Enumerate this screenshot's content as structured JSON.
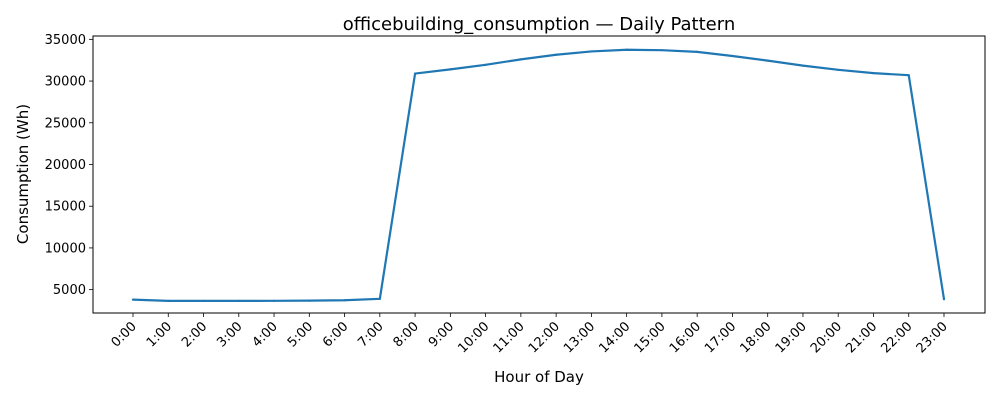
{
  "chart_data": {
    "type": "line",
    "title": "officebuilding_consumption — Daily Pattern",
    "xlabel": "Hour of Day",
    "ylabel": "Consumption (Wh)",
    "categories": [
      "0:00",
      "1:00",
      "2:00",
      "3:00",
      "4:00",
      "5:00",
      "6:00",
      "7:00",
      "8:00",
      "9:00",
      "10:00",
      "11:00",
      "12:00",
      "13:00",
      "14:00",
      "15:00",
      "16:00",
      "17:00",
      "18:00",
      "19:00",
      "20:00",
      "21:00",
      "22:00",
      "23:00"
    ],
    "series": [
      {
        "values": [
          3800,
          3650,
          3650,
          3650,
          3660,
          3680,
          3730,
          3900,
          30900,
          31400,
          31950,
          32600,
          33150,
          33550,
          33750,
          33700,
          33500,
          33000,
          32450,
          31850,
          31350,
          30950,
          30700,
          3850
        ],
        "color": "#1f77b4"
      }
    ],
    "yticks": [
      5000,
      10000,
      15000,
      20000,
      25000,
      30000,
      35000
    ],
    "ylim": [
      2200,
      35400
    ],
    "grid": false,
    "legend": "none"
  }
}
